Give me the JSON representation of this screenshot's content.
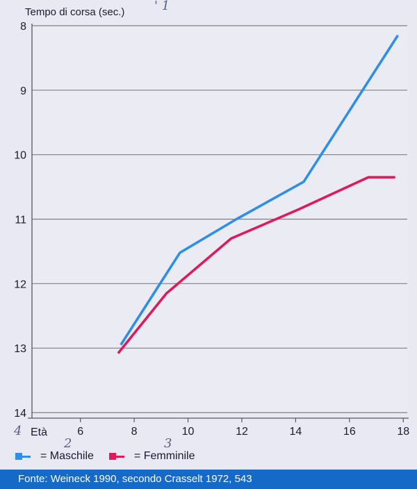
{
  "chart_data": {
    "type": "line",
    "title": "",
    "ylabel": "Tempo di corsa (sec.)",
    "xlabel": "Età",
    "xlim": [
      4.2,
      18.2
    ],
    "ylim": [
      8,
      14
    ],
    "y_inverted": true,
    "x_ticks": [
      6,
      8,
      10,
      12,
      14,
      16,
      18
    ],
    "y_ticks": [
      8,
      9,
      10,
      11,
      12,
      13,
      14
    ],
    "grid": "horizontal",
    "series": [
      {
        "name": "Maschile",
        "color": "#2f8ee8",
        "points": [
          [
            7.5,
            12.95
          ],
          [
            9.7,
            11.52
          ],
          [
            11.8,
            11.0
          ],
          [
            14.3,
            10.42
          ],
          [
            17.8,
            8.15
          ]
        ]
      },
      {
        "name": "Femminile",
        "color": "#e0195a",
        "points": [
          [
            7.4,
            13.08
          ],
          [
            9.2,
            12.15
          ],
          [
            11.6,
            11.3
          ],
          [
            14.1,
            10.85
          ],
          [
            16.7,
            10.35
          ],
          [
            17.7,
            10.35
          ]
        ]
      }
    ]
  },
  "legend": {
    "items": [
      {
        "label": "= Maschile",
        "color": "#2f8ee8"
      },
      {
        "label": "= Femminile",
        "color": "#e0195a"
      }
    ]
  },
  "footer": {
    "text": "Fonte: Weineck 1990, secondo Crasselt 1972, 543"
  },
  "handwritten": {
    "four": "4",
    "two": "2",
    "three": "3",
    "marks": "' 1"
  }
}
